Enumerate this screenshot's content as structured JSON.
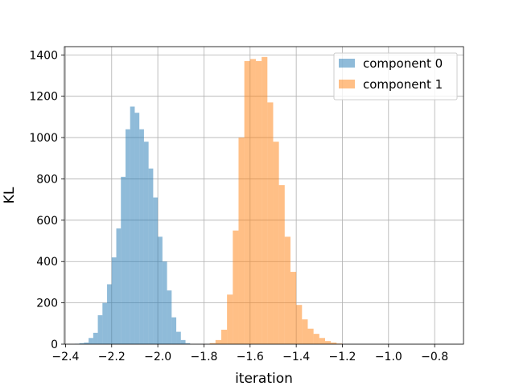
{
  "chart_data": {
    "type": "bar",
    "title": "",
    "xlabel": "iteration",
    "ylabel": "KL",
    "xlim": [
      -2.405,
      -0.675
    ],
    "ylim": [
      0,
      1440
    ],
    "grid": true,
    "legend_placement": "top-right",
    "x_ticks": [
      -2.4,
      -2.2,
      -2.0,
      -1.8,
      -1.6,
      -1.4,
      -1.2,
      -1.0,
      -0.8
    ],
    "x_tick_labels": [
      "−2.4",
      "−2.2",
      "−2.0",
      "−1.8",
      "−1.6",
      "−1.4",
      "−1.2",
      "−1.0",
      "−0.8"
    ],
    "y_ticks": [
      0,
      200,
      400,
      600,
      800,
      1000,
      1200,
      1400
    ],
    "y_tick_labels": [
      "0",
      "200",
      "400",
      "600",
      "800",
      "1000",
      "1200",
      "1400"
    ],
    "series": [
      {
        "name": "component 0",
        "color": "#1f77b4",
        "bin_start": -2.36,
        "bin_width": 0.02,
        "values": [
          2,
          5,
          8,
          30,
          55,
          140,
          200,
          290,
          420,
          560,
          810,
          1040,
          1150,
          1120,
          1040,
          980,
          850,
          710,
          520,
          400,
          260,
          130,
          60,
          20,
          5
        ]
      },
      {
        "name": "component 1",
        "color": "#ff7f0e",
        "bin_start": -1.775,
        "bin_width": 0.025,
        "values": [
          5,
          20,
          70,
          240,
          550,
          1000,
          1370,
          1380,
          1370,
          1390,
          1170,
          980,
          770,
          520,
          350,
          190,
          120,
          75,
          50,
          30,
          15,
          8,
          3
        ]
      }
    ]
  }
}
